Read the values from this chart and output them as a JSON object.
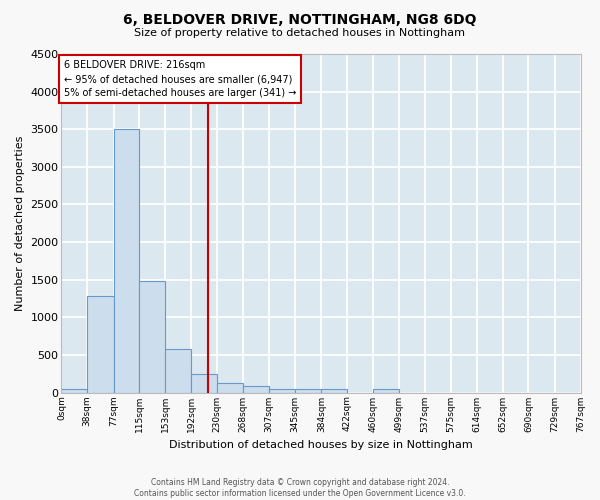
{
  "title": "6, BELDOVER DRIVE, NOTTINGHAM, NG8 6DQ",
  "subtitle": "Size of property relative to detached houses in Nottingham",
  "xlabel": "Distribution of detached houses by size in Nottingham",
  "ylabel": "Number of detached properties",
  "bar_edges": [
    0,
    38,
    77,
    115,
    153,
    192,
    230,
    268,
    307,
    345,
    384,
    422,
    460,
    499,
    537,
    575,
    614,
    652,
    690,
    729,
    767
  ],
  "bar_heights": [
    50,
    1280,
    3500,
    1480,
    580,
    250,
    130,
    80,
    50,
    50,
    50,
    0,
    50,
    0,
    0,
    0,
    0,
    0,
    0,
    0
  ],
  "bar_color": "#ccdded",
  "bar_edge_color": "#6699cc",
  "vline_x": 216,
  "vline_color": "#cc0000",
  "ylim": [
    0,
    4500
  ],
  "xlim": [
    0,
    767
  ],
  "annotation_text_line1": "6 BELDOVER DRIVE: 216sqm",
  "annotation_text_line2": "← 95% of detached houses are smaller (6,947)",
  "annotation_text_line3": "5% of semi-detached houses are larger (341) →",
  "footer_line1": "Contains HM Land Registry data © Crown copyright and database right 2024.",
  "footer_line2": "Contains public sector information licensed under the Open Government Licence v3.0.",
  "fig_background_color": "#f8f8f8",
  "plot_background_color": "#dce8f0",
  "grid_color": "#ffffff",
  "annotation_box_edge_color": "#cc0000",
  "annotation_box_face_color": "#ffffff",
  "tick_labels": [
    "0sqm",
    "38sqm",
    "77sqm",
    "115sqm",
    "153sqm",
    "192sqm",
    "230sqm",
    "268sqm",
    "307sqm",
    "345sqm",
    "384sqm",
    "422sqm",
    "460sqm",
    "499sqm",
    "537sqm",
    "575sqm",
    "614sqm",
    "652sqm",
    "690sqm",
    "729sqm",
    "767sqm"
  ],
  "yticks": [
    0,
    500,
    1000,
    1500,
    2000,
    2500,
    3000,
    3500,
    4000,
    4500
  ]
}
